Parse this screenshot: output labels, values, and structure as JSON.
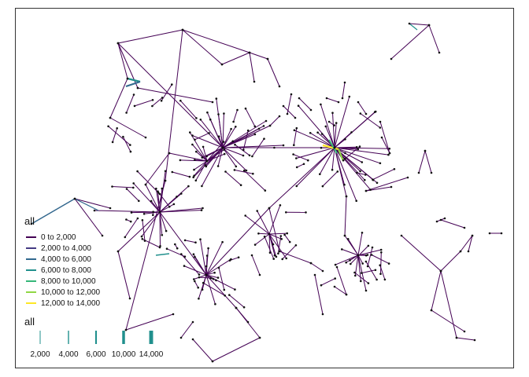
{
  "legend_color": {
    "title": "all",
    "items": [
      {
        "label": "0 to 2,000",
        "color": "#440154"
      },
      {
        "label": "2,000 to 4,000",
        "color": "#443a83"
      },
      {
        "label": "4,000 to 6,000",
        "color": "#31688e"
      },
      {
        "label": "6,000 to 8,000",
        "color": "#21908d"
      },
      {
        "label": "8,000 to 10,000",
        "color": "#35b779"
      },
      {
        "label": "10,000 to 12,000",
        "color": "#8fd744"
      },
      {
        "label": "12,000 to 14,000",
        "color": "#fde725"
      }
    ]
  },
  "legend_width": {
    "title": "all",
    "items": [
      {
        "label": "2,000",
        "value": 2000
      },
      {
        "label": "4,000",
        "value": 4000
      },
      {
        "label": "6,000",
        "value": 6000
      },
      {
        "label": "10,000",
        "value": 10000
      },
      {
        "label": "14,000",
        "value": 14000
      }
    ]
  },
  "colors": {
    "node": "#111111",
    "edge_default": "#440154",
    "frame": "#333333"
  }
}
